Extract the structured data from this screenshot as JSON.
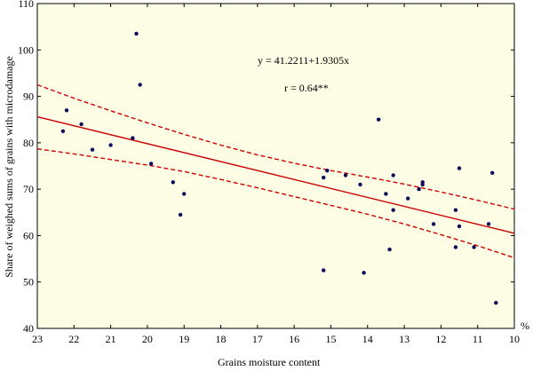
{
  "chart_data": {
    "type": "scatter",
    "title": "",
    "xlabel": "Grains  moisture content",
    "xunit": "%",
    "ylabel": "Share of weighed sums of grains with microdamage",
    "xlim": [
      23,
      10
    ],
    "ylim": [
      40,
      110
    ],
    "x_reversed": true,
    "x_ticks": [
      23,
      22,
      21,
      20,
      19,
      18,
      17,
      16,
      15,
      14,
      13,
      12,
      11,
      10
    ],
    "y_ticks": [
      40,
      50,
      60,
      70,
      80,
      90,
      100,
      110
    ],
    "grid": false,
    "legend": "none",
    "colors": {
      "plot_bg": "#fdfde6",
      "points": "#0a0a5a",
      "fit": "#cc0000"
    },
    "annotations": {
      "equation": "y = 41.2211+1.9305x",
      "r": "r = 0.64**"
    },
    "fit_line": {
      "x": [
        23,
        10
      ],
      "y": [
        85.6,
        60.5
      ]
    },
    "confidence_upper": {
      "x": [
        23,
        22,
        21,
        20,
        19,
        18,
        17,
        16,
        15,
        14,
        13,
        12,
        11,
        10
      ],
      "y": [
        92.5,
        89.6,
        86.9,
        84.3,
        81.8,
        79.5,
        77.4,
        75.6,
        74.0,
        72.6,
        71.1,
        69.4,
        67.6,
        65.7
      ]
    },
    "confidence_lower": {
      "x": [
        23,
        22,
        21,
        20,
        19,
        18,
        17,
        16,
        15,
        14,
        13,
        12,
        11,
        10
      ],
      "y": [
        78.7,
        77.6,
        76.4,
        75.2,
        73.8,
        72.1,
        70.3,
        68.4,
        66.5,
        64.6,
        62.5,
        60.2,
        57.8,
        55.2
      ]
    },
    "points": [
      {
        "x": 22.3,
        "y": 82.5
      },
      {
        "x": 22.2,
        "y": 87.0
      },
      {
        "x": 21.8,
        "y": 84.0
      },
      {
        "x": 21.5,
        "y": 78.5
      },
      {
        "x": 21.0,
        "y": 79.5
      },
      {
        "x": 20.4,
        "y": 81.0
      },
      {
        "x": 20.3,
        "y": 103.5
      },
      {
        "x": 20.2,
        "y": 92.5
      },
      {
        "x": 19.9,
        "y": 75.5
      },
      {
        "x": 19.3,
        "y": 71.5
      },
      {
        "x": 19.1,
        "y": 64.5
      },
      {
        "x": 19.0,
        "y": 69.0
      },
      {
        "x": 15.2,
        "y": 52.5
      },
      {
        "x": 15.2,
        "y": 72.5
      },
      {
        "x": 15.1,
        "y": 74.0
      },
      {
        "x": 14.6,
        "y": 73.0
      },
      {
        "x": 14.2,
        "y": 71.0
      },
      {
        "x": 14.1,
        "y": 52.0
      },
      {
        "x": 13.7,
        "y": 85.0
      },
      {
        "x": 13.5,
        "y": 69.0
      },
      {
        "x": 13.4,
        "y": 57.0
      },
      {
        "x": 13.3,
        "y": 73.0
      },
      {
        "x": 13.3,
        "y": 65.5
      },
      {
        "x": 12.9,
        "y": 68.0
      },
      {
        "x": 12.6,
        "y": 70.0
      },
      {
        "x": 12.5,
        "y": 71.0
      },
      {
        "x": 12.5,
        "y": 71.5
      },
      {
        "x": 12.2,
        "y": 62.5
      },
      {
        "x": 11.6,
        "y": 65.5
      },
      {
        "x": 11.6,
        "y": 57.5
      },
      {
        "x": 11.5,
        "y": 74.5
      },
      {
        "x": 11.5,
        "y": 62.0
      },
      {
        "x": 11.1,
        "y": 57.5
      },
      {
        "x": 10.7,
        "y": 62.5
      },
      {
        "x": 10.6,
        "y": 73.5
      },
      {
        "x": 10.5,
        "y": 45.5
      }
    ]
  }
}
